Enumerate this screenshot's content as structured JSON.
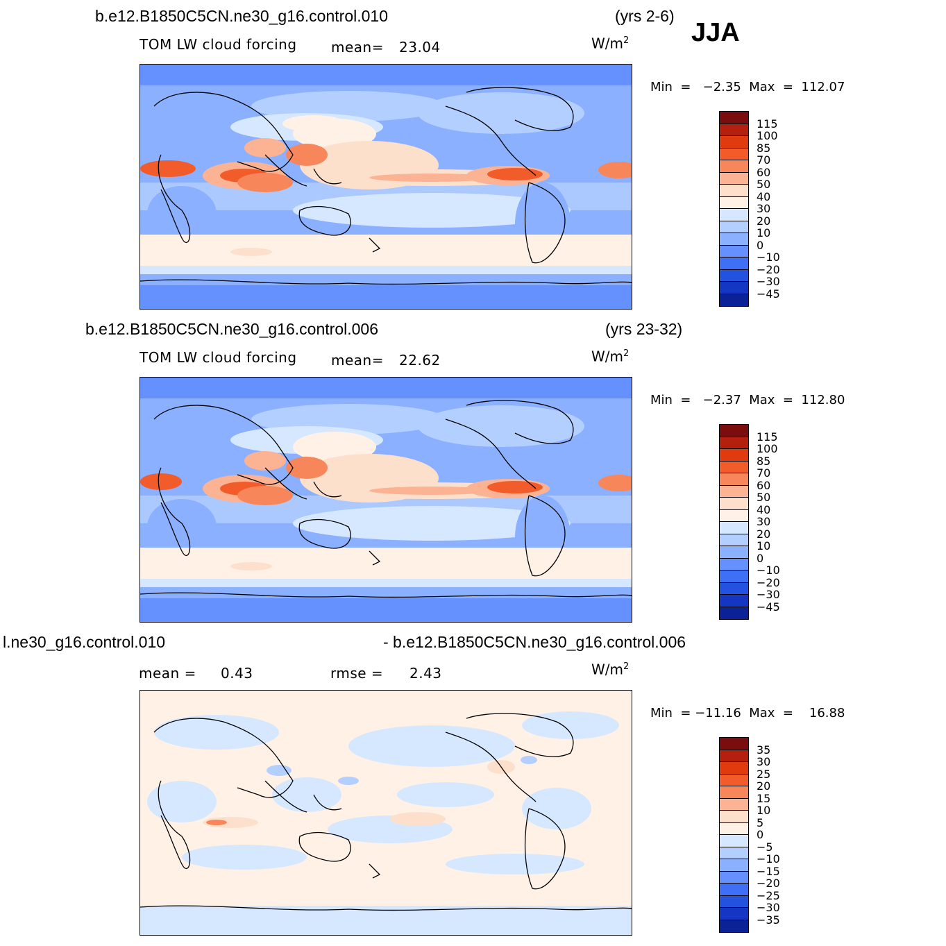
{
  "season": "JJA",
  "panels": [
    {
      "case": "b.e12.B1850C5CN.ne30_g16.control.010",
      "years": "(yrs 2-6)",
      "variable": "TOM  LW  cloud  forcing",
      "stat1_label": "mean=",
      "stat1_value": "23.04",
      "units": "W/m",
      "units_exp": "2",
      "minmax": "Min  =   −2.35  Max  =  112.07",
      "colorbar": [
        "115",
        "100",
        "85",
        "70",
        "60",
        "50",
        "40",
        "30",
        "20",
        "10",
        "0",
        "−10",
        "−20",
        "−30",
        "−45"
      ]
    },
    {
      "case": "b.e12.B1850C5CN.ne30_g16.control.006",
      "years": "(yrs 23-32)",
      "variable": "TOM  LW  cloud  forcing",
      "stat1_label": "mean=",
      "stat1_value": "22.62",
      "units": "W/m",
      "units_exp": "2",
      "minmax": "Min  =   −2.37  Max  =  112.80",
      "colorbar": [
        "115",
        "100",
        "85",
        "70",
        "60",
        "50",
        "40",
        "30",
        "20",
        "10",
        "0",
        "−10",
        "−20",
        "−30",
        "−45"
      ]
    },
    {
      "case_left": "l.ne30_g16.control.010",
      "case_right": "- b.e12.B1850C5CN.ne30_g16.control.006",
      "stat1_label": "mean  =",
      "stat1_value": "0.43",
      "stat2_label": "rmse  =",
      "stat2_value": "2.43",
      "units": "W/m",
      "units_exp": "2",
      "minmax": "Min  = −11.16  Max  =    16.88",
      "colorbar": [
        "35",
        "30",
        "25",
        "20",
        "15",
        "10",
        "5",
        "0",
        "−5",
        "−10",
        "−15",
        "−20",
        "−25",
        "−30",
        "−35"
      ]
    }
  ],
  "colors": {
    "scale_main": [
      "#7a0d0d",
      "#b3200e",
      "#e03a0f",
      "#f25c2a",
      "#f7875a",
      "#fbb393",
      "#fde0cc",
      "#fff1e6",
      "#d6e8ff",
      "#b3cfff",
      "#8ab0ff",
      "#6591ff",
      "#3f6ff5",
      "#2452e0",
      "#1436c2",
      "#0a2296"
    ],
    "scale_diff": [
      "#7a0d0d",
      "#b3200e",
      "#e03a0f",
      "#f25c2a",
      "#f7875a",
      "#fbb393",
      "#fde0cc",
      "#fff1e6",
      "#d6e8ff",
      "#b3cfff",
      "#8ab0ff",
      "#6591ff",
      "#3f6ff5",
      "#2452e0",
      "#1436c2",
      "#0a2296"
    ]
  }
}
